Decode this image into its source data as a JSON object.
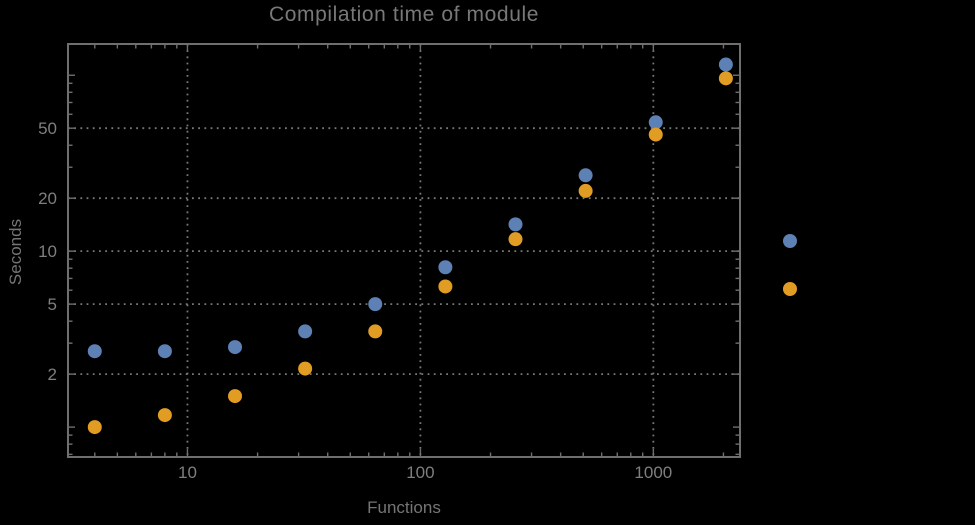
{
  "window": {
    "background": "#000000"
  },
  "chart_data": {
    "type": "scatter",
    "title": "Compilation time of module",
    "xlabel": "Functions",
    "ylabel": "Seconds",
    "xscale": "log",
    "yscale": "log",
    "grid": "dotted lines at labeled major ticks, frame on all four sides with inward ticks",
    "legend_position": "outside right of frame, marker dots only (no visible label text)",
    "axes": {
      "x": {
        "label": "Functions",
        "range": [
          3.07,
          2355
        ],
        "major_ticks": [
          10,
          100,
          1000
        ],
        "minor_ticks": [
          4,
          5,
          6,
          7,
          8,
          9,
          20,
          30,
          40,
          50,
          60,
          70,
          80,
          90,
          200,
          300,
          400,
          500,
          600,
          700,
          800,
          900,
          2000
        ],
        "gridlines": [
          10,
          100,
          1000
        ]
      },
      "y": {
        "label": "Seconds",
        "range": [
          0.676,
          150.5
        ],
        "major_ticks": [
          2,
          5,
          10,
          20,
          50
        ],
        "mid_ticks": [
          1,
          100
        ],
        "minor_ticks": [
          0.7,
          0.8,
          0.9,
          3,
          4,
          6,
          7,
          8,
          9,
          30,
          40,
          60,
          70,
          80,
          90
        ],
        "gridlines": [
          2,
          5,
          10,
          20,
          50
        ]
      }
    },
    "x": [
      4,
      8,
      16,
      32,
      64,
      128,
      256,
      512,
      1024,
      2048
    ],
    "series": [
      {
        "name": "blue",
        "color": "#5E81B5",
        "values": [
          2.7,
          2.7,
          2.85,
          3.5,
          5.0,
          8.1,
          14.2,
          27,
          54,
          115
        ]
      },
      {
        "name": "orange",
        "color": "#E19C24",
        "values": [
          1.0,
          1.17,
          1.5,
          2.15,
          3.5,
          6.3,
          11.7,
          22,
          46,
          96
        ]
      }
    ],
    "legend_markers": [
      {
        "series": "blue",
        "color": "#5E81B5"
      },
      {
        "series": "orange",
        "color": "#E19C24"
      }
    ],
    "colors": {
      "title": "#787878",
      "tick_labels": "#7f7f7f",
      "axis_labels": "#757575",
      "frame": "#6f6f6f",
      "grid": "#787878"
    }
  }
}
